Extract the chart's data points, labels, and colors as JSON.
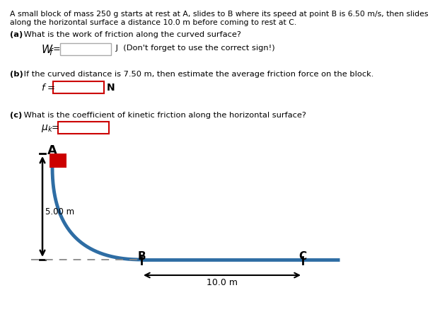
{
  "title_line1": "A small block of mass 250 g starts at rest at A, slides to B where its speed at point B is 6.50 m/s, then slides",
  "title_line2": "along the horizontal surface a distance 10.0 m before coming to rest at C.",
  "qa_label": "(a)",
  "qa_text": " What is the work of friction along the curved surface?",
  "qa_unit": " J  (Don't forget to use the correct sign!)",
  "qb_label": "(b)",
  "qb_text": " If the curved distance is 7.50 m, then estimate the average friction force on the block.",
  "qb_unit": " N",
  "qc_label": "(c)",
  "qc_text": " What is the coefficient of kinetic friction along the horizontal surface?",
  "label_A": "A",
  "label_B": "B",
  "label_C": "C",
  "label_height": "5.00 m",
  "label_horiz": "10.0 m",
  "curve_color": "#2e6da4",
  "block_color": "#cc0000",
  "arrow_color": "#000000",
  "dashed_color": "#888888",
  "box_gray_edge": "#aaaaaa",
  "box_red_edge": "#cc0000",
  "bg_color": "#ffffff",
  "text_color": "#000000",
  "font_size_title": 7.8,
  "font_size_body": 8.2,
  "font_size_label": 9.5
}
